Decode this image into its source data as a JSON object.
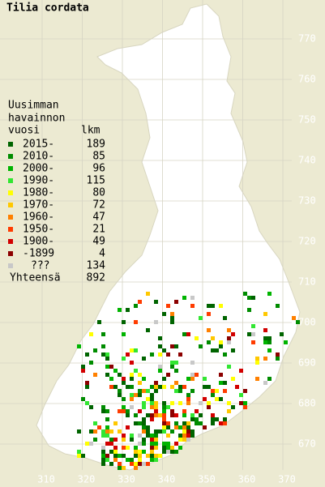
{
  "title": "Tilia cordata",
  "legend": {
    "heading": [
      "Uusimman",
      "havainnon",
      "vuosi"
    ],
    "count_heading": "lkm",
    "rows": [
      {
        "label": "2015-",
        "count": "189",
        "color": "#006400"
      },
      {
        "label": "2010-",
        "count": "85",
        "color": "#008c00"
      },
      {
        "label": "2000-",
        "count": "96",
        "color": "#00b400"
      },
      {
        "label": "1990-",
        "count": "115",
        "color": "#32e632"
      },
      {
        "label": "1980-",
        "count": "80",
        "color": "#ffff00"
      },
      {
        "label": "1970-",
        "count": "72",
        "color": "#ffc800"
      },
      {
        "label": "1960-",
        "count": "47",
        "color": "#ff8000"
      },
      {
        "label": "1950-",
        "count": "21",
        "color": "#ff3c00"
      },
      {
        "label": "1900-",
        "count": "49",
        "color": "#d20000"
      },
      {
        "label": "-1899",
        "count": "4",
        "color": "#8c0000"
      },
      {
        "label": "???",
        "count": "134",
        "color": "#c8c8c8"
      }
    ],
    "total_label": "Yhteensä",
    "total": "892"
  },
  "x_axis": [
    "310",
    "320",
    "330",
    "340",
    "350",
    "360",
    "370"
  ],
  "y_axis": [
    "770",
    "760",
    "750",
    "740",
    "730",
    "720",
    "710",
    "700",
    "690",
    "680",
    "670"
  ]
}
